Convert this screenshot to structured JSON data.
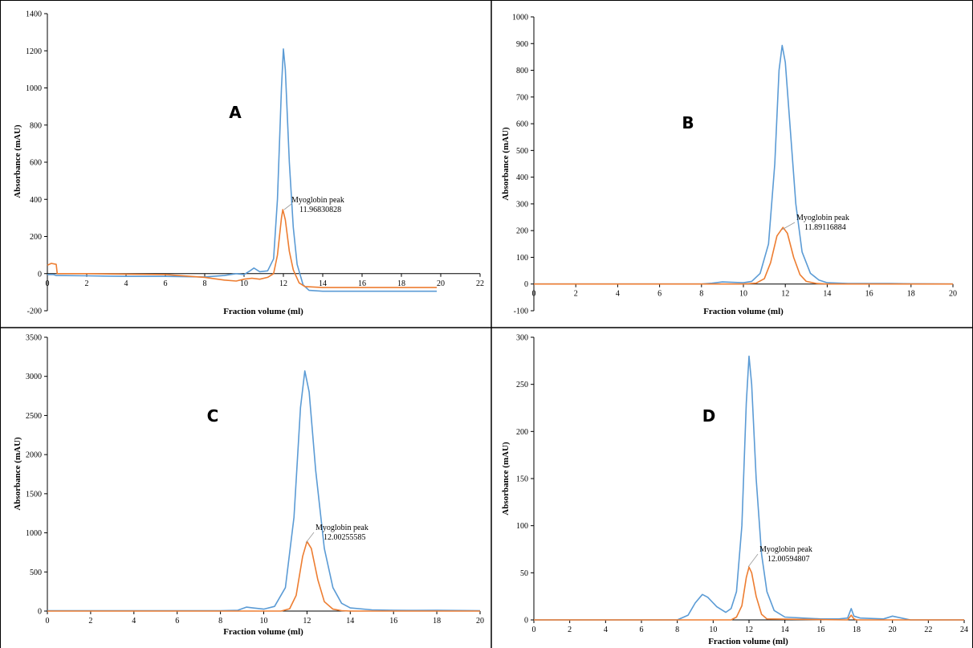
{
  "chart_data": [
    {
      "type": "line",
      "panel_label": "A",
      "xlabel": "Fraction volume (ml)",
      "ylabel": "Absorbance (mAU)",
      "xlim": [
        0,
        22
      ],
      "ylim": [
        -200,
        1400
      ],
      "xticks": [
        0,
        2,
        4,
        6,
        8,
        10,
        12,
        14,
        16,
        18,
        20,
        22
      ],
      "yticks": [
        -200,
        0,
        200,
        400,
        600,
        800,
        1000,
        1200,
        1400
      ],
      "annotation": {
        "label": "Myoglobin peak",
        "value": "11.96830828",
        "x": 11.97,
        "y": 345
      },
      "series": [
        {
          "color": "#5B9BD5",
          "points": [
            [
              0,
              -5
            ],
            [
              0.3,
              -5
            ],
            [
              0.45,
              -10
            ],
            [
              2,
              -12
            ],
            [
              4,
              -15
            ],
            [
              6,
              -15
            ],
            [
              8,
              -18
            ],
            [
              9,
              -10
            ],
            [
              9.6,
              0
            ],
            [
              10,
              -5
            ],
            [
              10.3,
              15
            ],
            [
              10.5,
              30
            ],
            [
              10.8,
              10
            ],
            [
              11.2,
              15
            ],
            [
              11.5,
              80
            ],
            [
              11.7,
              400
            ],
            [
              11.9,
              1000
            ],
            [
              12.0,
              1210
            ],
            [
              12.1,
              1100
            ],
            [
              12.3,
              600
            ],
            [
              12.5,
              250
            ],
            [
              12.7,
              50
            ],
            [
              13.0,
              -60
            ],
            [
              13.3,
              -90
            ],
            [
              14,
              -95
            ],
            [
              16,
              -95
            ],
            [
              18,
              -95
            ],
            [
              19.8,
              -95
            ]
          ]
        },
        {
          "color": "#ED7D31",
          "points": [
            [
              0,
              45
            ],
            [
              0.2,
              55
            ],
            [
              0.45,
              50
            ],
            [
              0.5,
              0
            ],
            [
              2,
              0
            ],
            [
              4,
              -3
            ],
            [
              6,
              -5
            ],
            [
              8,
              -20
            ],
            [
              9,
              -35
            ],
            [
              9.6,
              -40
            ],
            [
              10,
              -30
            ],
            [
              10.4,
              -25
            ],
            [
              10.8,
              -30
            ],
            [
              11.2,
              -20
            ],
            [
              11.5,
              0
            ],
            [
              11.7,
              100
            ],
            [
              11.9,
              300
            ],
            [
              11.97,
              345
            ],
            [
              12.1,
              290
            ],
            [
              12.3,
              120
            ],
            [
              12.5,
              20
            ],
            [
              12.8,
              -50
            ],
            [
              13.1,
              -70
            ],
            [
              14,
              -75
            ],
            [
              16,
              -75
            ],
            [
              18,
              -75
            ],
            [
              19.8,
              -75
            ]
          ]
        }
      ]
    },
    {
      "type": "line",
      "panel_label": "B",
      "xlabel": "Fraction volume (ml)",
      "ylabel": "Absorbance (mAU)",
      "xlim": [
        0,
        20
      ],
      "ylim": [
        -100,
        1000
      ],
      "xticks": [
        0,
        2,
        4,
        6,
        8,
        10,
        12,
        14,
        16,
        18,
        20
      ],
      "yticks": [
        -100,
        0,
        100,
        200,
        300,
        400,
        500,
        600,
        700,
        800,
        900,
        1000
      ],
      "annotation": {
        "label": "Myoglobin peak",
        "value": "11.89116884",
        "x": 11.89,
        "y": 212
      },
      "series": [
        {
          "color": "#5B9BD5",
          "points": [
            [
              0,
              0
            ],
            [
              8,
              0
            ],
            [
              8.5,
              3
            ],
            [
              9,
              8
            ],
            [
              9.6,
              6
            ],
            [
              10,
              5
            ],
            [
              10.4,
              10
            ],
            [
              10.8,
              40
            ],
            [
              11.2,
              150
            ],
            [
              11.5,
              450
            ],
            [
              11.7,
              800
            ],
            [
              11.85,
              893
            ],
            [
              12.0,
              830
            ],
            [
              12.2,
              620
            ],
            [
              12.5,
              300
            ],
            [
              12.8,
              120
            ],
            [
              13.2,
              40
            ],
            [
              13.6,
              15
            ],
            [
              14,
              5
            ],
            [
              15,
              2
            ],
            [
              17,
              2
            ],
            [
              18,
              1
            ],
            [
              20,
              0
            ]
          ]
        },
        {
          "color": "#ED7D31",
          "points": [
            [
              0,
              0
            ],
            [
              10,
              0
            ],
            [
              10.6,
              3
            ],
            [
              11.0,
              20
            ],
            [
              11.3,
              80
            ],
            [
              11.6,
              180
            ],
            [
              11.89,
              212
            ],
            [
              12.1,
              190
            ],
            [
              12.4,
              100
            ],
            [
              12.7,
              35
            ],
            [
              13.0,
              10
            ],
            [
              13.5,
              2
            ],
            [
              14,
              0
            ],
            [
              20,
              0
            ]
          ]
        }
      ]
    },
    {
      "type": "line",
      "panel_label": "C",
      "xlabel": "Fraction volume (ml)",
      "ylabel": "Absorbance (mAU)",
      "xlim": [
        0,
        20
      ],
      "ylim": [
        0,
        3500
      ],
      "xticks": [
        0,
        2,
        4,
        6,
        8,
        10,
        12,
        14,
        16,
        18,
        20
      ],
      "yticks": [
        0,
        500,
        1000,
        1500,
        2000,
        2500,
        3000,
        3500
      ],
      "annotation": {
        "label": "Myoglobin peak",
        "value": "12.00255585",
        "x": 12.0,
        "y": 890
      },
      "series": [
        {
          "color": "#5B9BD5",
          "points": [
            [
              0,
              5
            ],
            [
              8,
              5
            ],
            [
              8.8,
              10
            ],
            [
              9.2,
              50
            ],
            [
              9.5,
              40
            ],
            [
              10,
              25
            ],
            [
              10.5,
              60
            ],
            [
              11,
              300
            ],
            [
              11.4,
              1200
            ],
            [
              11.7,
              2600
            ],
            [
              11.9,
              3070
            ],
            [
              12.1,
              2800
            ],
            [
              12.4,
              1800
            ],
            [
              12.8,
              800
            ],
            [
              13.2,
              300
            ],
            [
              13.6,
              100
            ],
            [
              14,
              40
            ],
            [
              15,
              15
            ],
            [
              16,
              10
            ],
            [
              17,
              8
            ],
            [
              18,
              10
            ],
            [
              20,
              5
            ]
          ]
        },
        {
          "color": "#ED7D31",
          "points": [
            [
              0,
              0
            ],
            [
              10.8,
              0
            ],
            [
              11.2,
              30
            ],
            [
              11.5,
              200
            ],
            [
              11.8,
              700
            ],
            [
              12.0,
              890
            ],
            [
              12.2,
              800
            ],
            [
              12.5,
              400
            ],
            [
              12.8,
              120
            ],
            [
              13.2,
              25
            ],
            [
              13.6,
              5
            ],
            [
              14,
              0
            ],
            [
              20,
              0
            ]
          ]
        }
      ]
    },
    {
      "type": "line",
      "panel_label": "D",
      "xlabel": "Fraction volume (ml)",
      "ylabel": "Absorbance (mAU)",
      "xlim": [
        0,
        24
      ],
      "ylim": [
        0,
        300
      ],
      "xticks": [
        0,
        2,
        4,
        6,
        8,
        10,
        12,
        14,
        16,
        18,
        20,
        22,
        24
      ],
      "yticks": [
        0,
        50,
        100,
        150,
        200,
        250,
        300
      ],
      "annotation": {
        "label": "Myoglobin peak",
        "value": "12.00594807",
        "x": 12.01,
        "y": 55
      },
      "series": [
        {
          "color": "#5B9BD5",
          "points": [
            [
              0,
              0
            ],
            [
              8,
              0
            ],
            [
              8.6,
              5
            ],
            [
              9.0,
              18
            ],
            [
              9.4,
              27
            ],
            [
              9.7,
              24
            ],
            [
              10.2,
              14
            ],
            [
              10.7,
              8
            ],
            [
              11.0,
              12
            ],
            [
              11.3,
              30
            ],
            [
              11.6,
              100
            ],
            [
              11.85,
              230
            ],
            [
              12.0,
              280
            ],
            [
              12.15,
              250
            ],
            [
              12.4,
              150
            ],
            [
              12.7,
              70
            ],
            [
              13.0,
              30
            ],
            [
              13.4,
              10
            ],
            [
              14,
              3
            ],
            [
              16,
              1
            ],
            [
              17,
              1
            ],
            [
              17.5,
              2
            ],
            [
              17.7,
              12
            ],
            [
              17.85,
              4
            ],
            [
              18.2,
              2
            ],
            [
              19.5,
              1
            ],
            [
              20,
              4
            ],
            [
              20.5,
              2
            ],
            [
              21,
              0
            ],
            [
              24,
              0
            ]
          ]
        },
        {
          "color": "#ED7D31",
          "points": [
            [
              0,
              0
            ],
            [
              11,
              0
            ],
            [
              11.3,
              3
            ],
            [
              11.6,
              15
            ],
            [
              11.85,
              45
            ],
            [
              12.0,
              56
            ],
            [
              12.15,
              50
            ],
            [
              12.4,
              25
            ],
            [
              12.7,
              6
            ],
            [
              13.0,
              1
            ],
            [
              17.5,
              0
            ],
            [
              17.7,
              5
            ],
            [
              17.85,
              1
            ],
            [
              18,
              0
            ],
            [
              24,
              0
            ]
          ]
        }
      ]
    }
  ]
}
